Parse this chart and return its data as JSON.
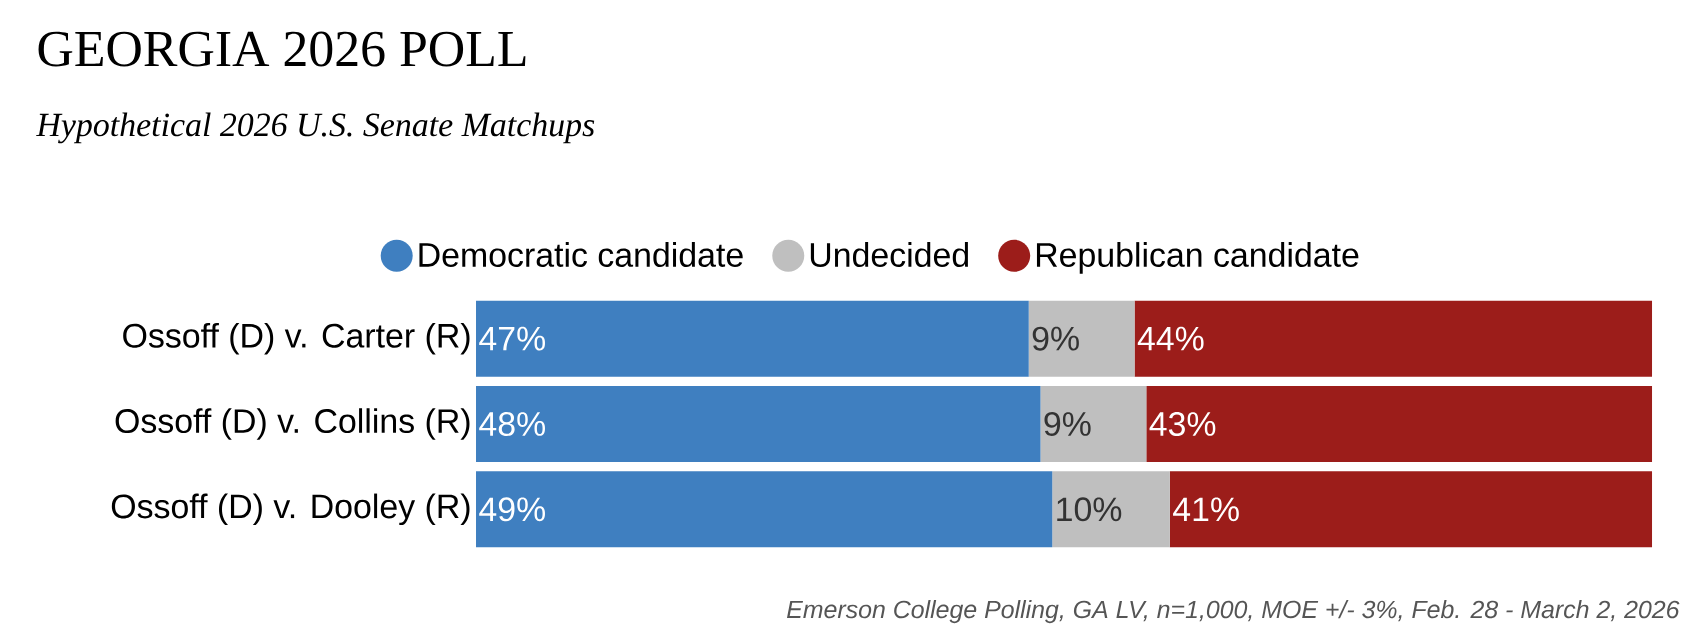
{
  "chart_data": {
    "type": "bar",
    "orientation": "horizontal",
    "stacked": true,
    "title": "GEORGIA 2026 POLL",
    "subtitle": "Hypothetical 2026  U.S. Senate Matchups",
    "categories": [
      "Ossoff (D) v. Carter (R)",
      "Ossoff (D) v. Collins (R)",
      "Ossoff (D) v. Dooley (R)"
    ],
    "series": [
      {
        "name": "Democratic candidate",
        "color": "#3f7fc0",
        "values": [
          47,
          48,
          49
        ],
        "value_labels": [
          "47%",
          "48%",
          "49%"
        ]
      },
      {
        "name": "Undecided",
        "color": "#bfbfbf",
        "values": [
          9,
          9,
          10
        ],
        "value_labels": [
          "9%",
          "9%",
          "10%"
        ]
      },
      {
        "name": "Republican candidate",
        "color": "#9c1d1a",
        "values": [
          44,
          43,
          41
        ],
        "value_labels": [
          "44%",
          "43%",
          "41%"
        ]
      }
    ],
    "legend": "top",
    "annotations": [
      "Emerson College Polling, GA LV, n=1,000, MOE +/- 3%, Feb. 28 - March 2, 2026"
    ]
  }
}
